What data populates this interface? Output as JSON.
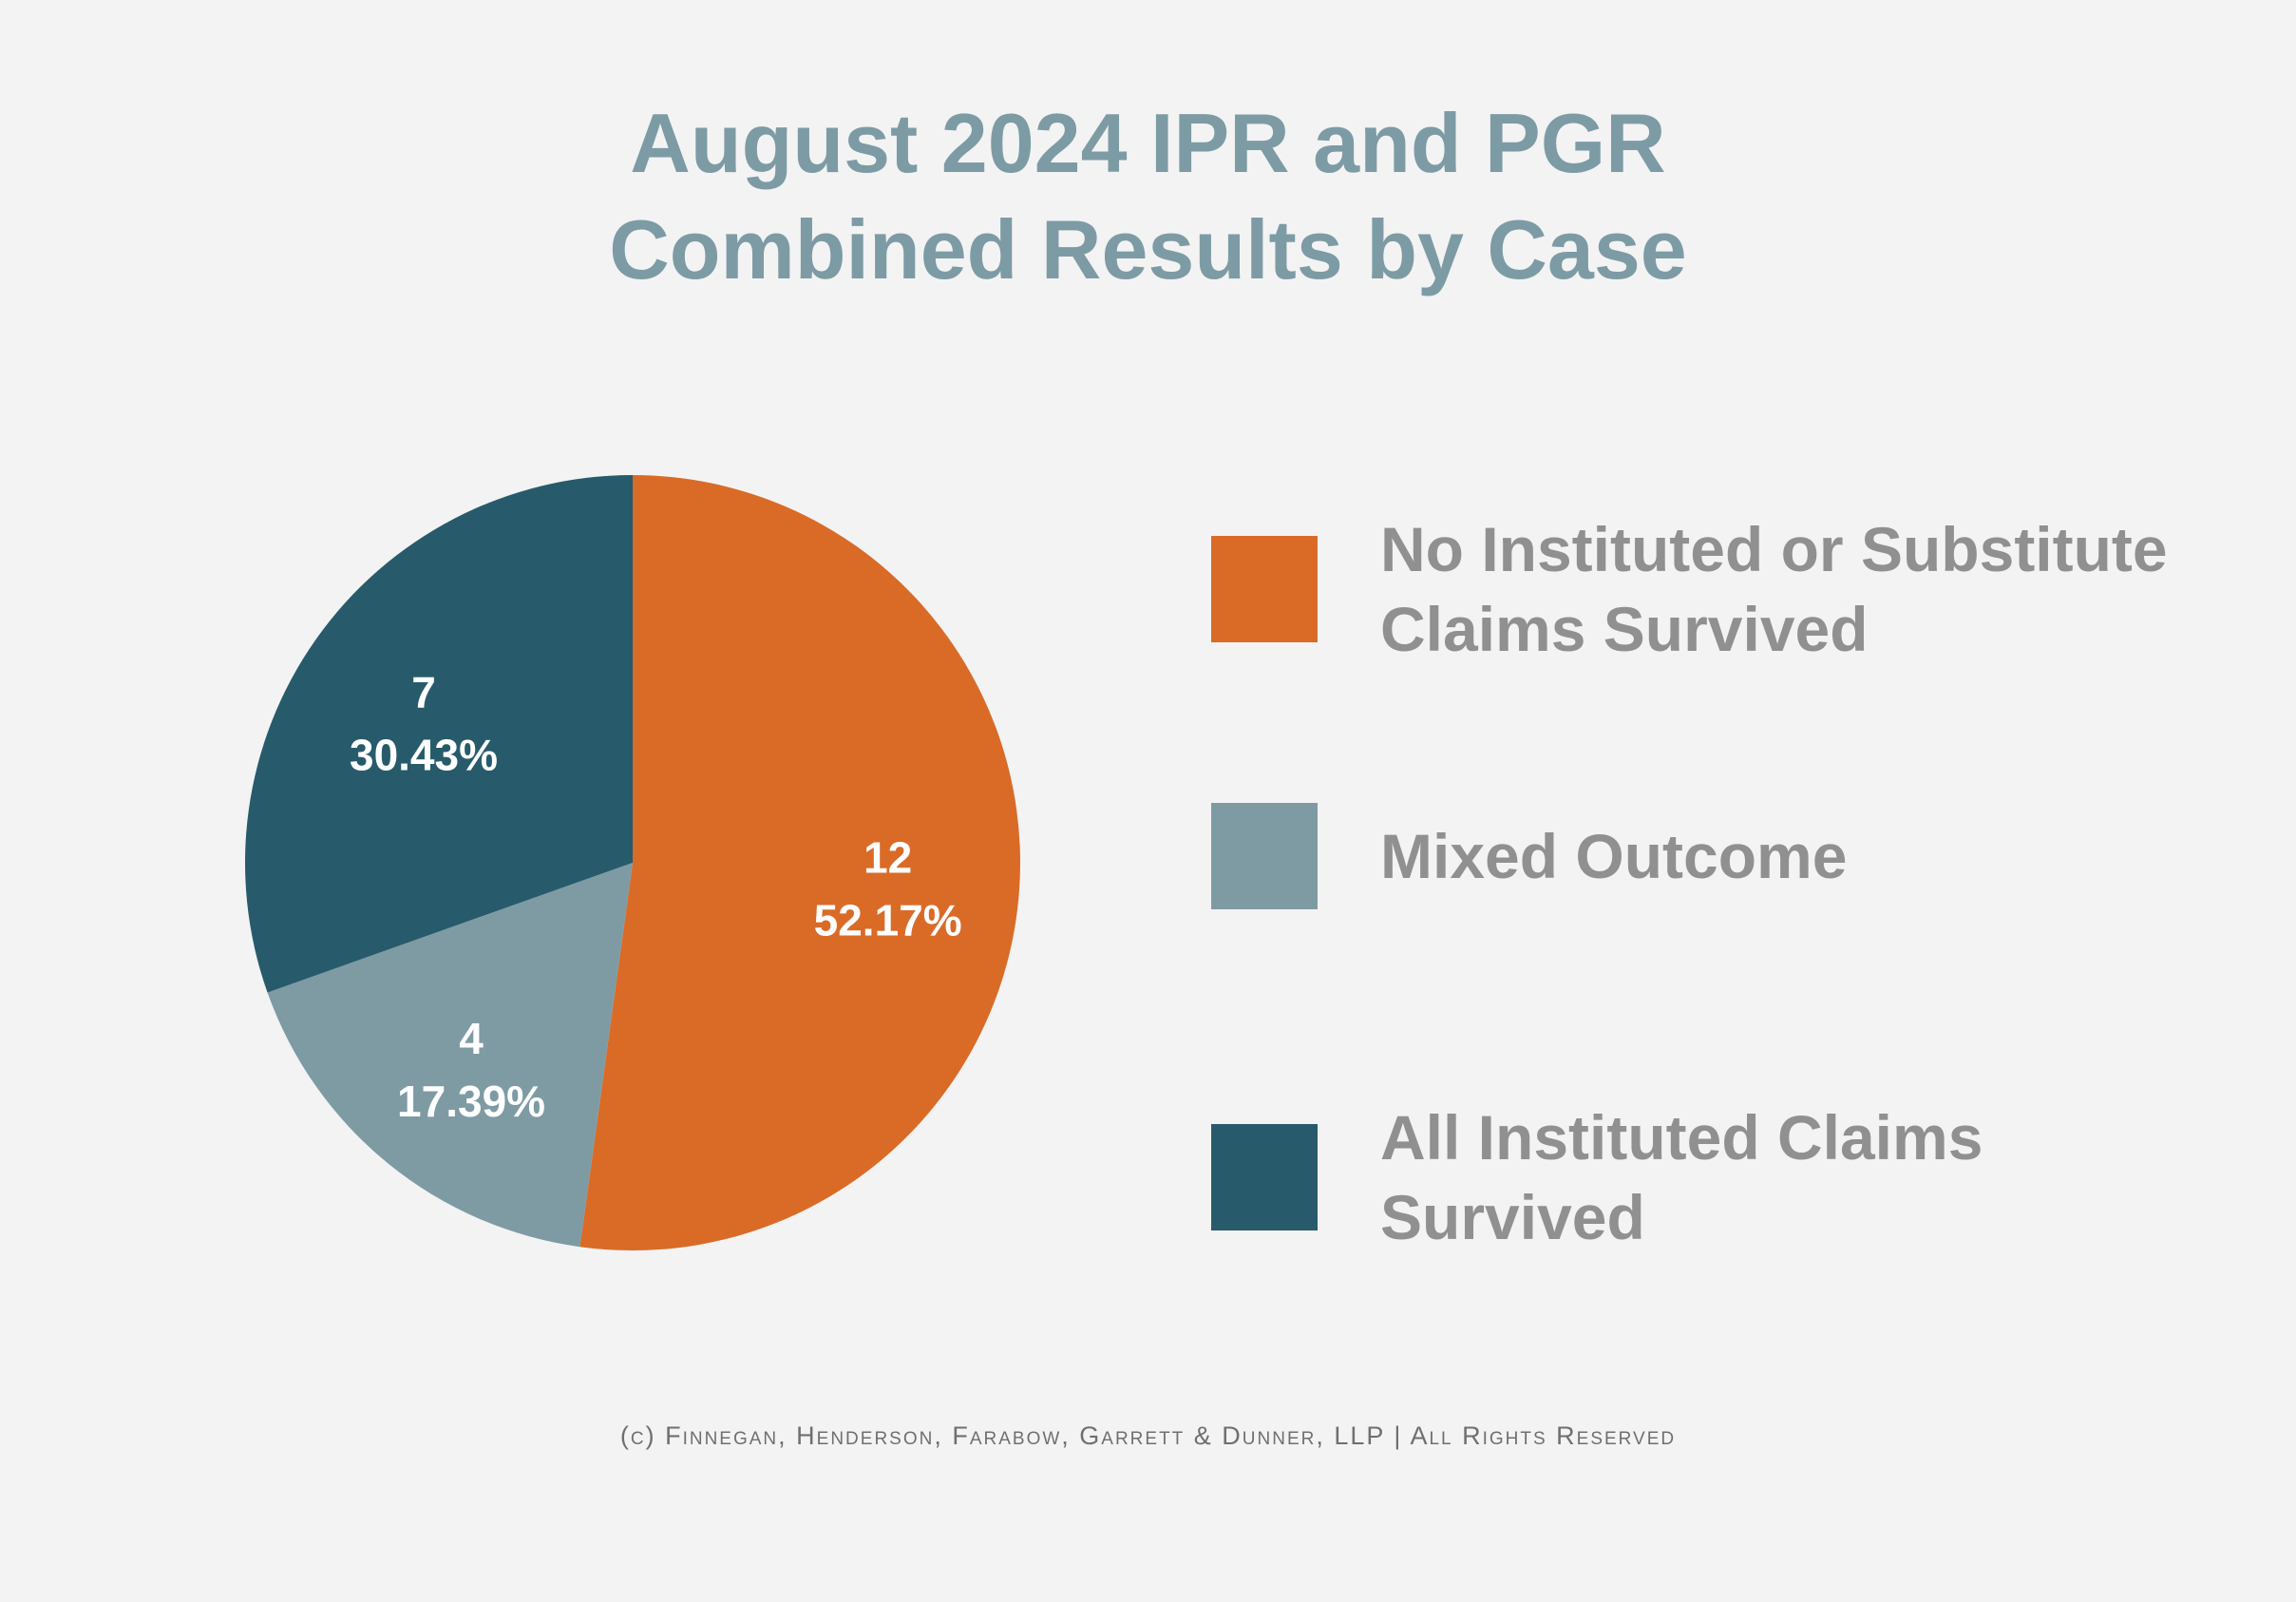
{
  "chart_data": {
    "type": "pie",
    "title": [
      "August 2024 IPR and PGR",
      "Combined Results by Case"
    ],
    "slices": [
      {
        "name": "No Instituted or Substitute Claims Survived",
        "value": 12,
        "percent_label": "52.17%",
        "color": "#d96b27"
      },
      {
        "name": "Mixed Outcome",
        "value": 4,
        "percent_label": "17.39%",
        "color": "#7e9ba4"
      },
      {
        "name": "All Instituted Claims Survived",
        "value": 7,
        "percent_label": "30.43%",
        "color": "#275b6b"
      }
    ],
    "start_angle": "top",
    "direction": "clockwise",
    "legend_placement": "right"
  },
  "footer": "(c) Finnegan, Henderson, Farabow, Garrett & Dunner, LLP | All Rights Reserved"
}
